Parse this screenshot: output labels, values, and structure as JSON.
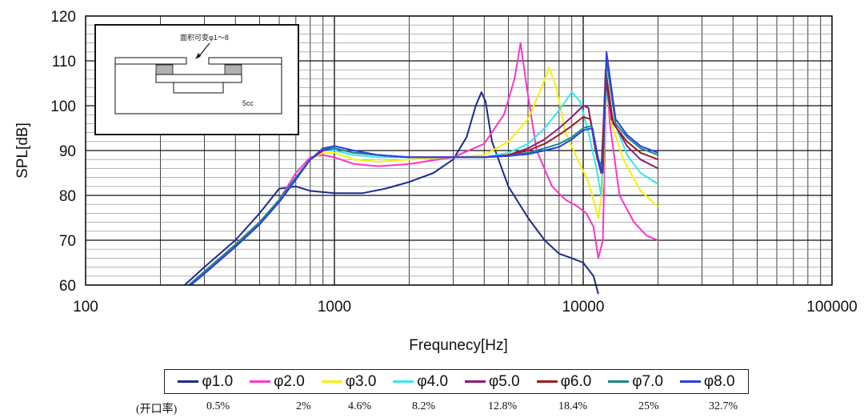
{
  "chart_data": {
    "type": "line",
    "xscale": "log",
    "xlabel": "Frequnecy[Hz]",
    "ylabel": "SPL[dB]",
    "xlim": [
      100,
      100000
    ],
    "ylim": [
      60,
      120
    ],
    "xticks": [
      100,
      1000,
      10000,
      100000
    ],
    "xtick_labels": [
      "100",
      "1000",
      "10000",
      "100000"
    ],
    "yticks": [
      60,
      70,
      80,
      90,
      100,
      110,
      120
    ],
    "ytick_labels": [
      "60",
      "70",
      "80",
      "90",
      "100",
      "110",
      "120"
    ],
    "grid": true,
    "inset": {
      "label": "面积可变φ1～8",
      "volume": "5cc"
    },
    "ratio_prefix": "(开口率)",
    "series": [
      {
        "name": "φ1.0",
        "color": "#1f2a8c",
        "ratio": "0.5%",
        "points": [
          [
            250,
            60
          ],
          [
            300,
            64
          ],
          [
            400,
            70
          ],
          [
            500,
            76
          ],
          [
            600,
            81.5
          ],
          [
            700,
            82
          ],
          [
            800,
            81
          ],
          [
            1000,
            80.5
          ],
          [
            1300,
            80.5
          ],
          [
            1600,
            81.5
          ],
          [
            2000,
            83
          ],
          [
            2500,
            85
          ],
          [
            3000,
            88
          ],
          [
            3400,
            93
          ],
          [
            3700,
            100
          ],
          [
            3900,
            103
          ],
          [
            4050,
            101
          ],
          [
            4300,
            92
          ],
          [
            5000,
            82
          ],
          [
            6000,
            75
          ],
          [
            7000,
            70
          ],
          [
            8000,
            67
          ],
          [
            9000,
            66
          ],
          [
            10000,
            65
          ],
          [
            11000,
            62
          ],
          [
            11500,
            58
          ]
        ]
      },
      {
        "name": "φ2.0",
        "color": "#ff33cc",
        "ratio": "2%",
        "points": [
          [
            260,
            60
          ],
          [
            300,
            63
          ],
          [
            400,
            69
          ],
          [
            500,
            74
          ],
          [
            600,
            79
          ],
          [
            700,
            85
          ],
          [
            800,
            88.5
          ],
          [
            900,
            89
          ],
          [
            1000,
            88.5
          ],
          [
            1200,
            87
          ],
          [
            1500,
            86.5
          ],
          [
            2000,
            87
          ],
          [
            3000,
            88.5
          ],
          [
            4000,
            91.5
          ],
          [
            4800,
            98
          ],
          [
            5300,
            106
          ],
          [
            5600,
            114
          ],
          [
            5900,
            105
          ],
          [
            6500,
            90
          ],
          [
            7500,
            82
          ],
          [
            8500,
            79
          ],
          [
            9500,
            77.5
          ],
          [
            10300,
            76
          ],
          [
            11000,
            73
          ],
          [
            11500,
            66
          ],
          [
            12000,
            70
          ],
          [
            12400,
            107
          ],
          [
            12800,
            96
          ],
          [
            14000,
            80
          ],
          [
            16000,
            74
          ],
          [
            18000,
            71
          ],
          [
            20000,
            70
          ]
        ]
      },
      {
        "name": "φ3.0",
        "color": "#f5f00a",
        "ratio": "4.6%",
        "points": [
          [
            260,
            60
          ],
          [
            300,
            63
          ],
          [
            400,
            69
          ],
          [
            500,
            74
          ],
          [
            600,
            79
          ],
          [
            700,
            84
          ],
          [
            800,
            88
          ],
          [
            900,
            89.5
          ],
          [
            1000,
            89.5
          ],
          [
            1200,
            88
          ],
          [
            1500,
            87.5
          ],
          [
            2000,
            88
          ],
          [
            3000,
            88.5
          ],
          [
            4000,
            89
          ],
          [
            5000,
            92
          ],
          [
            6000,
            97
          ],
          [
            6800,
            104
          ],
          [
            7300,
            108.5
          ],
          [
            7800,
            104
          ],
          [
            8500,
            94
          ],
          [
            9500,
            88
          ],
          [
            10500,
            83
          ],
          [
            11500,
            75
          ],
          [
            12000,
            82
          ],
          [
            12400,
            105
          ],
          [
            13000,
            96
          ],
          [
            14500,
            88
          ],
          [
            17000,
            81
          ],
          [
            20000,
            77.5
          ]
        ]
      },
      {
        "name": "φ4.0",
        "color": "#33e8f0",
        "ratio": "8.2%",
        "points": [
          [
            260,
            60
          ],
          [
            300,
            63
          ],
          [
            400,
            69
          ],
          [
            500,
            74
          ],
          [
            600,
            79
          ],
          [
            700,
            84
          ],
          [
            800,
            88
          ],
          [
            900,
            90
          ],
          [
            1000,
            90
          ],
          [
            1200,
            89
          ],
          [
            1500,
            88.5
          ],
          [
            2000,
            88.5
          ],
          [
            3000,
            88.5
          ],
          [
            4000,
            88.5
          ],
          [
            5000,
            89.5
          ],
          [
            6000,
            91.5
          ],
          [
            7000,
            95
          ],
          [
            8000,
            99
          ],
          [
            9000,
            103
          ],
          [
            9700,
            101
          ],
          [
            10500,
            94
          ],
          [
            11300,
            86
          ],
          [
            11800,
            80
          ],
          [
            12300,
            103
          ],
          [
            13000,
            98
          ],
          [
            15000,
            89
          ],
          [
            17000,
            85
          ],
          [
            20000,
            82.5
          ]
        ]
      },
      {
        "name": "φ5.0",
        "color": "#8b1a7e",
        "ratio": "12.8%",
        "points": [
          [
            260,
            60
          ],
          [
            300,
            63
          ],
          [
            400,
            69
          ],
          [
            500,
            74
          ],
          [
            600,
            79
          ],
          [
            700,
            84
          ],
          [
            800,
            88
          ],
          [
            900,
            90
          ],
          [
            1000,
            90.5
          ],
          [
            1200,
            89.5
          ],
          [
            1500,
            89
          ],
          [
            2000,
            88.5
          ],
          [
            3000,
            88.5
          ],
          [
            4000,
            88.5
          ],
          [
            5000,
            89
          ],
          [
            6000,
            90.5
          ],
          [
            7000,
            92.5
          ],
          [
            8000,
            95
          ],
          [
            9000,
            97.5
          ],
          [
            10000,
            100
          ],
          [
            10500,
            99.5
          ],
          [
            11200,
            90
          ],
          [
            11800,
            85
          ],
          [
            12300,
            106
          ],
          [
            13000,
            97
          ],
          [
            15000,
            91
          ],
          [
            17000,
            88
          ],
          [
            20000,
            86
          ]
        ]
      },
      {
        "name": "φ6.0",
        "color": "#a01c1c",
        "ratio": "18.4%",
        "points": [
          [
            260,
            60
          ],
          [
            300,
            63
          ],
          [
            400,
            69
          ],
          [
            500,
            74
          ],
          [
            600,
            79
          ],
          [
            700,
            84
          ],
          [
            800,
            88
          ],
          [
            900,
            90.5
          ],
          [
            1000,
            90.5
          ],
          [
            1200,
            89.5
          ],
          [
            1500,
            89
          ],
          [
            2000,
            88.5
          ],
          [
            3000,
            88.5
          ],
          [
            4000,
            88.5
          ],
          [
            5000,
            89
          ],
          [
            6000,
            90
          ],
          [
            7000,
            91.5
          ],
          [
            8000,
            93.5
          ],
          [
            9000,
            95.5
          ],
          [
            10000,
            97.5
          ],
          [
            10700,
            97
          ],
          [
            11400,
            88
          ],
          [
            11900,
            86
          ],
          [
            12300,
            108
          ],
          [
            13200,
            96
          ],
          [
            15000,
            92
          ],
          [
            17000,
            89.5
          ],
          [
            20000,
            88
          ]
        ]
      },
      {
        "name": "φ7.0",
        "color": "#178a8a",
        "ratio": "25%",
        "points": [
          [
            260,
            60
          ],
          [
            300,
            63
          ],
          [
            400,
            69
          ],
          [
            500,
            74
          ],
          [
            600,
            79
          ],
          [
            700,
            84
          ],
          [
            800,
            88
          ],
          [
            900,
            90.5
          ],
          [
            1000,
            90.5
          ],
          [
            1200,
            89.5
          ],
          [
            1500,
            89
          ],
          [
            2000,
            88.5
          ],
          [
            3000,
            88.5
          ],
          [
            4000,
            88.5
          ],
          [
            5000,
            88.8
          ],
          [
            6000,
            89.5
          ],
          [
            7000,
            90.5
          ],
          [
            8000,
            91.5
          ],
          [
            9000,
            93
          ],
          [
            10000,
            95
          ],
          [
            10800,
            95.5
          ],
          [
            11500,
            88
          ],
          [
            12000,
            86
          ],
          [
            12400,
            110
          ],
          [
            13500,
            96
          ],
          [
            15000,
            93
          ],
          [
            17000,
            90.5
          ],
          [
            20000,
            89
          ]
        ]
      },
      {
        "name": "φ8.0",
        "color": "#2c3ee6",
        "ratio": "32.7%",
        "points": [
          [
            265,
            60
          ],
          [
            300,
            62.5
          ],
          [
            400,
            68.5
          ],
          [
            500,
            73.5
          ],
          [
            600,
            78.5
          ],
          [
            700,
            83.5
          ],
          [
            800,
            88
          ],
          [
            900,
            90.5
          ],
          [
            1000,
            91
          ],
          [
            1200,
            90
          ],
          [
            1500,
            89
          ],
          [
            2000,
            88.5
          ],
          [
            3000,
            88.5
          ],
          [
            4000,
            88.5
          ],
          [
            5000,
            88.8
          ],
          [
            6000,
            89.2
          ],
          [
            7000,
            90
          ],
          [
            8000,
            90.8
          ],
          [
            9000,
            92.5
          ],
          [
            10000,
            94.5
          ],
          [
            10900,
            95
          ],
          [
            11600,
            87
          ],
          [
            12000,
            85
          ],
          [
            12400,
            112
          ],
          [
            13500,
            97
          ],
          [
            15000,
            93.5
          ],
          [
            17000,
            91
          ],
          [
            20000,
            89.5
          ]
        ]
      }
    ]
  }
}
